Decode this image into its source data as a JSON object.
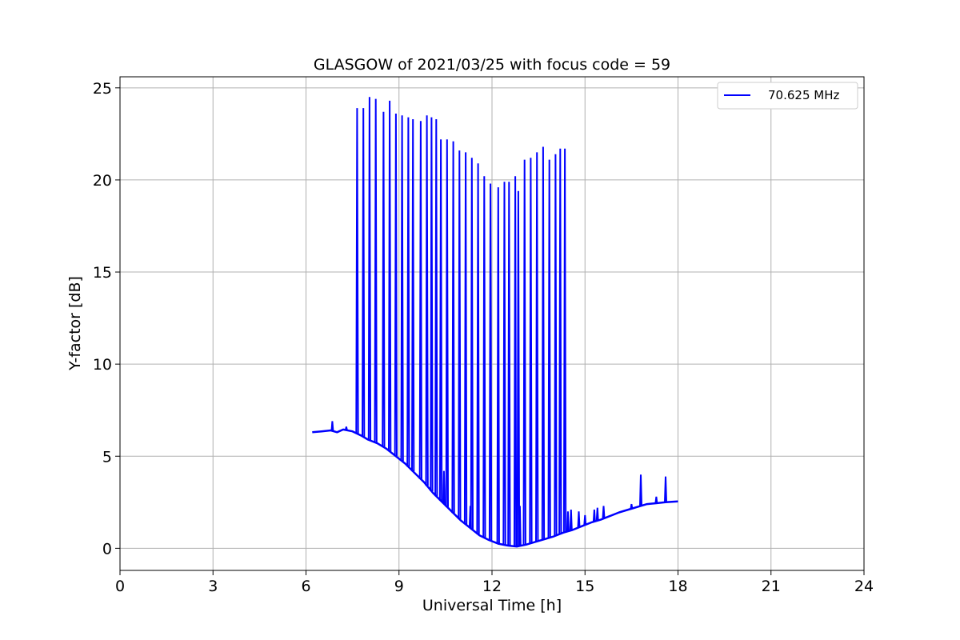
{
  "chart_data": {
    "type": "line",
    "title": "GLASGOW of 2021/03/25 with focus code = 59",
    "xlabel": "Universal Time [h]",
    "ylabel": "Y-factor [dB]",
    "xlim": [
      0,
      24
    ],
    "ylim": [
      -1.2,
      25.6
    ],
    "xticks": [
      0,
      3,
      6,
      9,
      12,
      15,
      18,
      21,
      24
    ],
    "yticks": [
      0,
      5,
      10,
      15,
      20,
      25
    ],
    "grid": true,
    "legend_position": "top-right",
    "line_color": "#0000ff",
    "series": [
      {
        "name": "70.625 MHz",
        "baseline": {
          "x": [
            6.2,
            6.5,
            6.8,
            7.0,
            7.2,
            7.5,
            7.8,
            8.0,
            8.3,
            8.6,
            8.9,
            9.2,
            9.5,
            9.8,
            10.1,
            10.4,
            10.7,
            11.0,
            11.3,
            11.6,
            11.9,
            12.2,
            12.5,
            12.8,
            13.1,
            13.4,
            13.7,
            14.0,
            14.3,
            14.6,
            14.9,
            15.2,
            15.5,
            15.8,
            16.1,
            16.4,
            16.7,
            17.0,
            17.3,
            17.6,
            18.0
          ],
          "y": [
            6.3,
            6.35,
            6.4,
            6.3,
            6.45,
            6.35,
            6.1,
            5.9,
            5.7,
            5.4,
            5.0,
            4.6,
            4.1,
            3.6,
            3.0,
            2.5,
            2.0,
            1.5,
            1.1,
            0.7,
            0.45,
            0.25,
            0.15,
            0.1,
            0.2,
            0.35,
            0.5,
            0.65,
            0.85,
            1.0,
            1.2,
            1.4,
            1.55,
            1.75,
            1.95,
            2.1,
            2.25,
            2.4,
            2.45,
            2.5,
            2.55
          ]
        },
        "spikes": {
          "x": [
            7.65,
            7.85,
            8.05,
            8.25,
            8.5,
            8.7,
            8.9,
            9.1,
            9.3,
            9.45,
            9.7,
            9.9,
            10.05,
            10.2,
            10.35,
            10.55,
            10.75,
            10.95,
            11.15,
            11.35,
            11.55,
            11.75,
            11.95,
            12.2,
            12.4,
            12.55,
            12.75,
            12.85,
            13.05,
            13.25,
            13.45,
            13.65,
            13.85,
            14.05,
            14.2,
            14.35
          ],
          "y": [
            23.9,
            23.9,
            24.5,
            24.4,
            23.7,
            24.3,
            23.6,
            23.5,
            23.4,
            23.3,
            23.2,
            23.5,
            23.4,
            23.3,
            22.2,
            22.2,
            22.1,
            21.6,
            21.5,
            21.2,
            20.9,
            20.2,
            19.8,
            19.6,
            19.9,
            19.9,
            20.2,
            19.4,
            21.1,
            21.2,
            21.5,
            21.8,
            21.1,
            21.4,
            21.7,
            21.7
          ]
        },
        "small_peaks": {
          "x": [
            6.85,
            7.3,
            10.45,
            11.3,
            12.9,
            14.45,
            14.55,
            14.8,
            15.0,
            15.3,
            15.4,
            15.6,
            16.5,
            16.8,
            17.3,
            17.6
          ],
          "y": [
            6.9,
            6.6,
            4.2,
            2.3,
            2.3,
            2.0,
            2.1,
            2.0,
            1.8,
            2.1,
            2.2,
            2.3,
            2.4,
            4.0,
            2.8,
            3.9
          ]
        }
      }
    ]
  }
}
